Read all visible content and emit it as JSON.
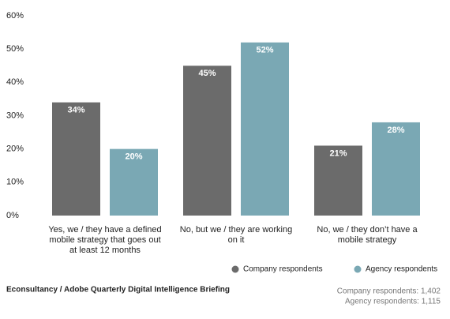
{
  "chart_data": {
    "type": "bar",
    "categories": [
      "Yes, we / they have a defined mobile strategy that goes out at least 12 months",
      "No, but we / they are working on it",
      "No, we / they don’t have a mobile strategy"
    ],
    "series": [
      {
        "name": "Company respondents",
        "color": "#6b6b6b",
        "values": [
          34,
          45,
          21
        ],
        "value_labels": [
          "34%",
          "45%",
          "21%"
        ]
      },
      {
        "name": "Agency respondents",
        "color": "#7aa8b4",
        "values": [
          20,
          52,
          28
        ],
        "value_labels": [
          "20%",
          "52%",
          "28%"
        ]
      }
    ],
    "ylim": [
      0,
      60
    ],
    "yticks": [
      {
        "value": 0,
        "label": "0%"
      },
      {
        "value": 10,
        "label": "10%"
      },
      {
        "value": 20,
        "label": "20%"
      },
      {
        "value": 30,
        "label": "30%"
      },
      {
        "value": 40,
        "label": "40%"
      },
      {
        "value": 50,
        "label": "50%"
      },
      {
        "value": 60,
        "label": "60%"
      }
    ],
    "grid": false,
    "legend": "bottom-right",
    "source": "Econsultancy / Adobe Quarterly Digital Intelligence Briefing",
    "notes": [
      "Company respondents: 1,402",
      "Agency respondents: 1,115"
    ]
  }
}
